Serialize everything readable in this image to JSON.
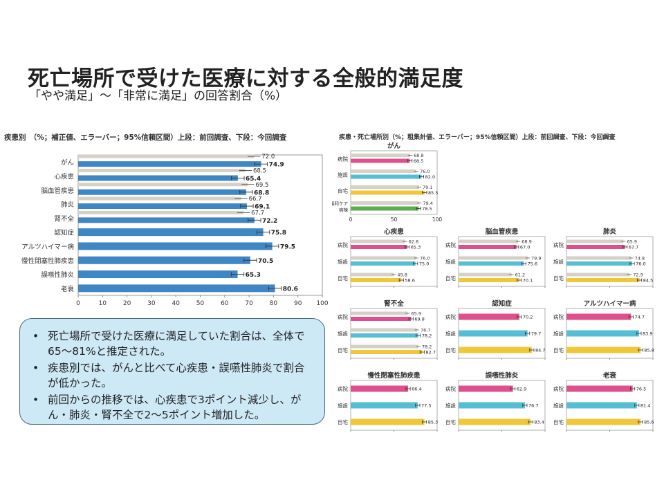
{
  "title": "死亡場所で受けた医療に対する全般的満足度",
  "subtitle": "「やや満足」～「非常に満足」の回答割合（%）",
  "colors": {
    "bar_blue": "#3f86c4",
    "prev_gray": "#d6d0c6",
    "hospital": "#df4f8c",
    "facility": "#55bdd4",
    "home": "#f1c73a",
    "palliative": "#5aae4f",
    "summary_bg": "#cde9f6"
  },
  "summary": {
    "bullets": [
      "死亡場所で受けた医療に満足していた割合は、全体で65～81%と推定された。",
      "疾患別では、がんと比べて心疾患・誤嚥性肺炎で割合が低かった。",
      "前回からの推移では、心疾患で3ポイント減少し、がん・肺炎・腎不全で2～5ポイント増加した。"
    ]
  },
  "chart_data": [
    {
      "type": "bar",
      "title": "疾患別　（%；補正値、エラーバー；95%信頼区間）上段：前回調査、下段：今回調査",
      "categories": [
        "がん",
        "心疾患",
        "脳血管疾患",
        "肺炎",
        "腎不全",
        "認知症",
        "アルツハイマー病",
        "慢性閉塞性肺疾患",
        "誤嚥性肺炎",
        "老衰"
      ],
      "series": [
        {
          "name": "前回調査",
          "values": [
            72.0,
            68.5,
            69.5,
            66.7,
            67.7,
            null,
            null,
            null,
            null,
            null
          ]
        },
        {
          "name": "今回調査",
          "values": [
            74.9,
            65.4,
            68.8,
            69.1,
            72.2,
            75.8,
            79.5,
            70.5,
            65.3,
            80.6
          ]
        }
      ],
      "xlim": [
        0,
        100
      ],
      "xticks": [
        0,
        10,
        20,
        30,
        40,
        50,
        60,
        70,
        80,
        90,
        100
      ]
    },
    {
      "type": "bar",
      "title": "疾患・死亡場所別（%；粗集計値、エラーバー；95%信頼区間）上段：前回調査、下段：今回調査",
      "xlim": [
        0,
        100
      ],
      "xticks": [
        0,
        50,
        100
      ],
      "panels": [
        {
          "name": "がん",
          "rows": [
            {
              "label": "病院",
              "color": "hospital",
              "prev": 68.8,
              "cur": 68.5
            },
            {
              "label": "施設",
              "color": "facility",
              "prev": 76.0,
              "cur": 82.0
            },
            {
              "label": "自宅",
              "color": "home",
              "prev": 79.1,
              "cur": 85.5
            },
            {
              "label": "緩和ケア病棟",
              "color": "palliative",
              "prev": 79.4,
              "cur": 78.5
            }
          ]
        },
        {
          "name": "心疾患",
          "rows": [
            {
              "label": "病院",
              "color": "hospital",
              "prev": 62.8,
              "cur": 65.3
            },
            {
              "label": "施設",
              "color": "facility",
              "prev": 76.0,
              "cur": 75.0
            },
            {
              "label": "自宅",
              "color": "home",
              "prev": 49.8,
              "cur": 58.6
            }
          ]
        },
        {
          "name": "脳血管疾患",
          "rows": [
            {
              "label": "病院",
              "color": "hospital",
              "prev": 68.9,
              "cur": 67.0
            },
            {
              "label": "施設",
              "color": "facility",
              "prev": 79.9,
              "cur": 75.6
            },
            {
              "label": "自宅",
              "color": "home",
              "prev": 61.2,
              "cur": 70.1
            }
          ]
        },
        {
          "name": "肺炎",
          "rows": [
            {
              "label": "病院",
              "color": "hospital",
              "prev": 65.9,
              "cur": 67.7
            },
            {
              "label": "施設",
              "color": "facility",
              "prev": 74.8,
              "cur": 76.0
            },
            {
              "label": "自宅",
              "color": "home",
              "prev": 72.9,
              "cur": 84.5
            }
          ]
        },
        {
          "name": "腎不全",
          "rows": [
            {
              "label": "病院",
              "color": "hospital",
              "prev": 65.9,
              "cur": 69.8
            },
            {
              "label": "施設",
              "color": "facility",
              "prev": 76.7,
              "cur": 78.2
            },
            {
              "label": "自宅",
              "color": "home",
              "prev": 78.2,
              "cur": 82.7
            }
          ]
        },
        {
          "name": "認知症",
          "rows": [
            {
              "label": "病院",
              "color": "hospital",
              "prev": null,
              "cur": 70.2
            },
            {
              "label": "施設",
              "color": "facility",
              "prev": null,
              "cur": 79.7
            },
            {
              "label": "自宅",
              "color": "home",
              "prev": null,
              "cur": 84.7
            }
          ]
        },
        {
          "name": "アルツハイマー病",
          "rows": [
            {
              "label": "病院",
              "color": "hospital",
              "prev": null,
              "cur": 74.7
            },
            {
              "label": "施設",
              "color": "facility",
              "prev": null,
              "cur": 83.9
            },
            {
              "label": "自宅",
              "color": "home",
              "prev": null,
              "cur": 85.8
            }
          ]
        },
        {
          "name": "慢性閉塞性肺疾患",
          "rows": [
            {
              "label": "病院",
              "color": "hospital",
              "prev": null,
              "cur": 66.4
            },
            {
              "label": "施設",
              "color": "facility",
              "prev": null,
              "cur": 77.5
            },
            {
              "label": "自宅",
              "color": "home",
              "prev": null,
              "cur": 85.3
            }
          ]
        },
        {
          "name": "誤嚥性肺炎",
          "rows": [
            {
              "label": "病院",
              "color": "hospital",
              "prev": null,
              "cur": 62.9
            },
            {
              "label": "施設",
              "color": "facility",
              "prev": null,
              "cur": 76.7
            },
            {
              "label": "自宅",
              "color": "home",
              "prev": null,
              "cur": 83.4
            }
          ]
        },
        {
          "name": "老衰",
          "rows": [
            {
              "label": "病院",
              "color": "hospital",
              "prev": null,
              "cur": 76.5
            },
            {
              "label": "施設",
              "color": "facility",
              "prev": null,
              "cur": 81.4
            },
            {
              "label": "自宅",
              "color": "home",
              "prev": null,
              "cur": 85.6
            }
          ]
        }
      ]
    }
  ]
}
